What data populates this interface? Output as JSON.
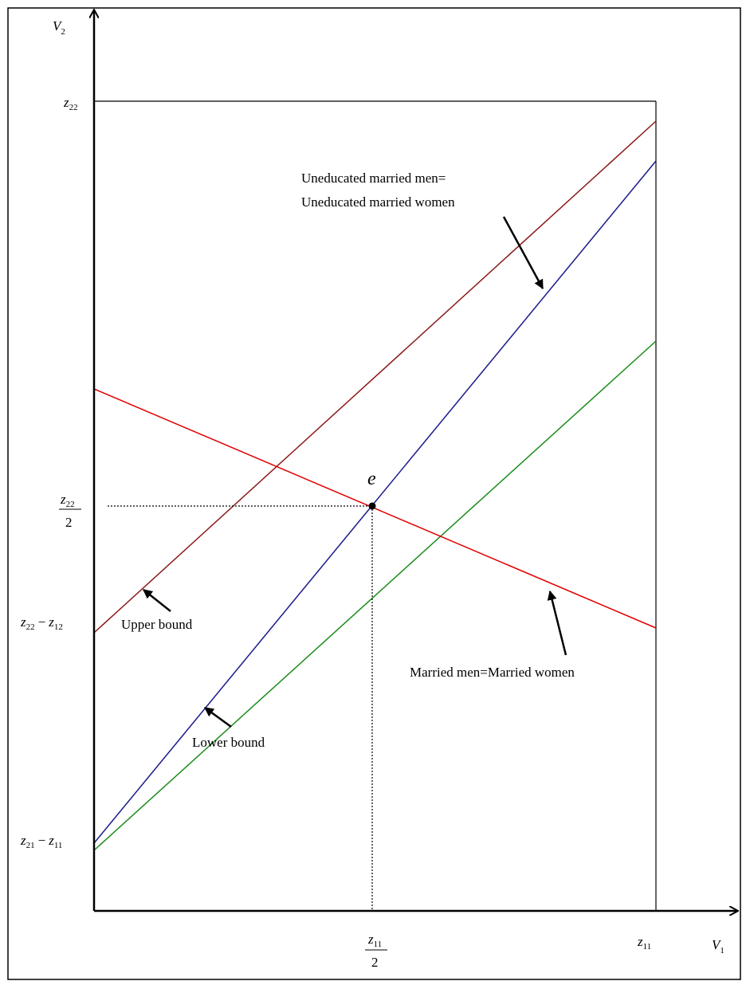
{
  "axes": {
    "x_label": "V",
    "x_label_sub": "1",
    "y_label": "V",
    "y_label_sub": "2"
  },
  "y_ticks": {
    "z22": {
      "base": "z",
      "sub": "22"
    },
    "half_z22": {
      "num_base": "z",
      "num_sub": "22",
      "den": "2"
    },
    "z22_minus_z12": {
      "a_base": "z",
      "a_sub": "22",
      "op": "−",
      "b_base": "z",
      "b_sub": "12"
    },
    "z21_minus_z11": {
      "a_base": "z",
      "a_sub": "21",
      "op": "−",
      "b_base": "z",
      "b_sub": "11"
    }
  },
  "x_ticks": {
    "half_z11": {
      "num_base": "z",
      "num_sub": "11",
      "den": "2"
    },
    "z11": {
      "base": "z",
      "sub": "11"
    }
  },
  "point": {
    "label": "e"
  },
  "annotations": {
    "uneducated_line1": "Uneducated married men=",
    "uneducated_line2": "Uneducated married women",
    "upper_bound": "Upper bound",
    "lower_bound": "Lower bound",
    "married": "Married men=Married women"
  },
  "colors": {
    "upper_bound_line": "#8b1a1a",
    "uneducated_line": "#1a1a8b",
    "lower_bound_line": "#1a8b1a",
    "married_line": "#e00000",
    "axis": "#000000"
  }
}
